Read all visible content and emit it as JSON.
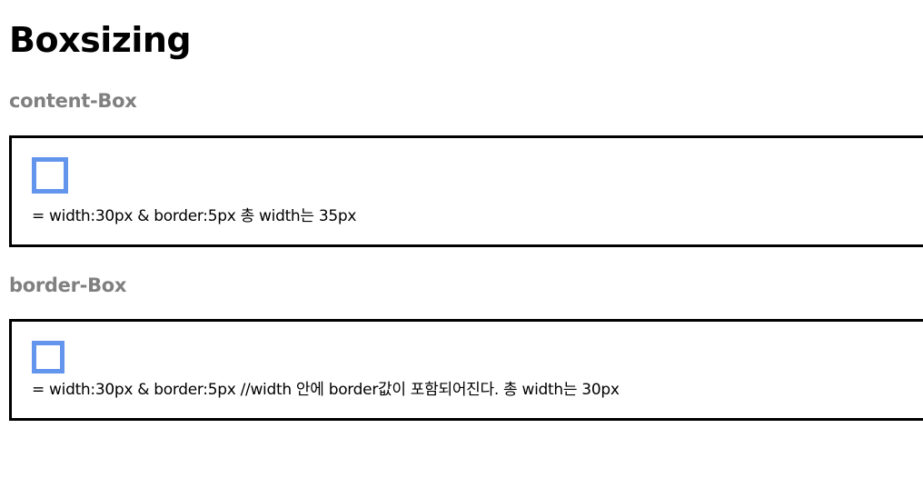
{
  "page": {
    "title": "Boxsizing"
  },
  "sections": [
    {
      "heading": "content-Box",
      "caption": "= width:30px & border:5px 총 width는 35px",
      "box_border_color": "#6495ed"
    },
    {
      "heading": "border-Box",
      "caption": "= width:30px & border:5px //width 안에 border값이 포함되어진다. 총 width는 30px",
      "box_border_color": "#6495ed"
    }
  ],
  "colors": {
    "heading_gray": "#808080",
    "panel_border": "#000000",
    "sample_box_border": "#6495ed"
  }
}
